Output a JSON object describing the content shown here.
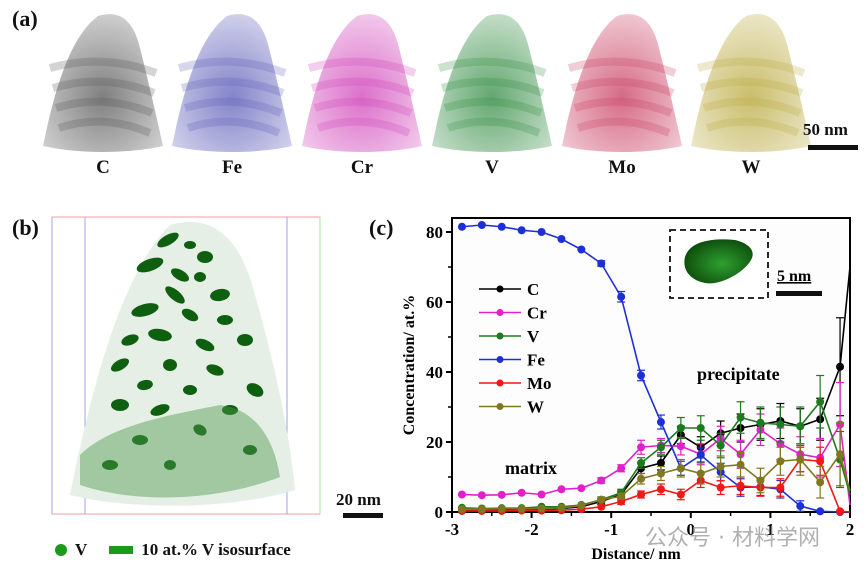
{
  "panel_a": {
    "label": "(a)",
    "elements": [
      {
        "name": "C",
        "color": "#555555"
      },
      {
        "name": "Fe",
        "color": "#5a5ab8"
      },
      {
        "name": "Cr",
        "color": "#d040b8"
      },
      {
        "name": "V",
        "color": "#2f8a3f"
      },
      {
        "name": "Mo",
        "color": "#c83a5e"
      },
      {
        "name": "W",
        "color": "#b8a83a"
      }
    ],
    "scale_bar": "50 nm"
  },
  "panel_b": {
    "label": "(b)",
    "scale_bar": "20 nm",
    "legend": [
      {
        "symbol": "dot",
        "label": "V",
        "color": "#1a9a1a"
      },
      {
        "symbol": "bar",
        "label": "10 at.% V isosurface",
        "color": "#1a9a1a"
      }
    ]
  },
  "panel_c": {
    "label": "(c)",
    "inset_scale_bar": "5 nm",
    "annotations": [
      "matrix",
      "precipitate"
    ]
  },
  "watermark": "公众号 · 材料学网",
  "chart_data": {
    "type": "line",
    "title": "",
    "xlabel": "Distance/ nm",
    "ylabel": "Concentration/ at.%",
    "xlim": [
      -3,
      2
    ],
    "ylim": [
      0,
      85
    ],
    "xticks": [
      -3,
      -2,
      -1,
      0,
      1,
      2
    ],
    "yticks": [
      0,
      20,
      40,
      60,
      80
    ],
    "legend_position": "left",
    "x": [
      -2.875,
      -2.625,
      -2.375,
      -2.125,
      -1.875,
      -1.625,
      -1.375,
      -1.125,
      -0.875,
      -0.625,
      -0.375,
      -0.125,
      0.125,
      0.375,
      0.625,
      0.875,
      1.125,
      1.375,
      1.625,
      1.875,
      2.0
    ],
    "series": [
      {
        "name": "C",
        "color": "#000000",
        "values": [
          0.5,
          0.5,
          0.5,
          0.6,
          0.8,
          1.0,
          1.5,
          3.0,
          5.0,
          12.5,
          14.0,
          22.0,
          18.5,
          22.5,
          24.0,
          25.0,
          26.0,
          24.5,
          26.5,
          41.5,
          70.0
        ],
        "errors": [
          0.3,
          0.3,
          0.3,
          0.3,
          0.3,
          0.3,
          0.5,
          0.8,
          1.0,
          1.5,
          2.0,
          2.5,
          3.0,
          3.5,
          4.0,
          4.5,
          5.0,
          5.0,
          6.0,
          14.0,
          0
        ]
      },
      {
        "name": "Cr",
        "color": "#e020c8",
        "values": [
          5.0,
          4.8,
          4.9,
          5.5,
          5.0,
          6.5,
          6.8,
          9.0,
          12.5,
          18.5,
          19.0,
          18.8,
          16.5,
          21.0,
          16.5,
          23.5,
          19.5,
          16.5,
          15.5,
          25.0,
          2.0
        ],
        "errors": [
          0.3,
          0.3,
          0.3,
          0.4,
          0.4,
          0.5,
          0.6,
          0.8,
          1.0,
          2.0,
          2.0,
          2.5,
          3.0,
          3.5,
          4.0,
          4.5,
          4.5,
          5.0,
          5.5,
          12.0,
          0
        ]
      },
      {
        "name": "V",
        "color": "#1e7a1e",
        "values": [
          1.2,
          1.0,
          1.1,
          1.1,
          1.5,
          1.5,
          2.0,
          3.5,
          5.5,
          14.0,
          18.5,
          24.0,
          24.0,
          19.0,
          27.0,
          25.5,
          25.0,
          24.5,
          31.5,
          15.0,
          5.0
        ],
        "errors": [
          0.3,
          0.3,
          0.3,
          0.3,
          0.3,
          0.3,
          0.5,
          0.8,
          1.0,
          1.5,
          2.0,
          3.0,
          3.5,
          3.5,
          4.5,
          4.5,
          5.0,
          5.5,
          7.5,
          8.0,
          0
        ]
      },
      {
        "name": "Fe",
        "color": "#1c2fd8",
        "values": [
          81.5,
          82.0,
          81.5,
          80.5,
          80.0,
          78.0,
          75.0,
          71.0,
          61.5,
          39.0,
          25.7,
          12.5,
          16.3,
          11.4,
          7.0,
          7.2,
          6.5,
          1.7,
          0.2,
          0.0,
          0.0
        ],
        "errors": [
          0.3,
          0.3,
          0.3,
          0.4,
          0.4,
          0.5,
          0.6,
          0.8,
          1.5,
          1.5,
          2.0,
          2.0,
          2.0,
          2.5,
          2.5,
          2.5,
          2.5,
          1.5,
          0.3,
          0,
          0
        ]
      },
      {
        "name": "Mo",
        "color": "#f01818",
        "values": [
          0.3,
          0.3,
          0.3,
          0.4,
          0.4,
          0.5,
          0.8,
          1.5,
          3.0,
          5.0,
          6.5,
          5.0,
          9.0,
          7.0,
          7.5,
          7.0,
          7.0,
          15.0,
          14.5,
          0.2,
          0.0
        ],
        "errors": [
          0.2,
          0.2,
          0.2,
          0.2,
          0.2,
          0.3,
          0.4,
          0.5,
          0.8,
          1.0,
          1.5,
          1.5,
          2.0,
          2.0,
          2.5,
          2.5,
          2.5,
          3.5,
          4.0,
          0.2,
          0
        ]
      },
      {
        "name": "W",
        "color": "#807820",
        "values": [
          0.8,
          0.8,
          0.9,
          0.9,
          1.0,
          1.2,
          1.8,
          3.5,
          4.5,
          9.5,
          11.0,
          12.5,
          11.0,
          13.0,
          13.5,
          9.0,
          14.5,
          15.0,
          8.5,
          16.5,
          6.0
        ],
        "errors": [
          0.3,
          0.3,
          0.3,
          0.3,
          0.3,
          0.3,
          0.4,
          0.6,
          0.8,
          1.5,
          2.0,
          2.5,
          3.0,
          3.0,
          3.5,
          3.5,
          4.0,
          4.5,
          4.5,
          9.0,
          0
        ]
      }
    ]
  }
}
